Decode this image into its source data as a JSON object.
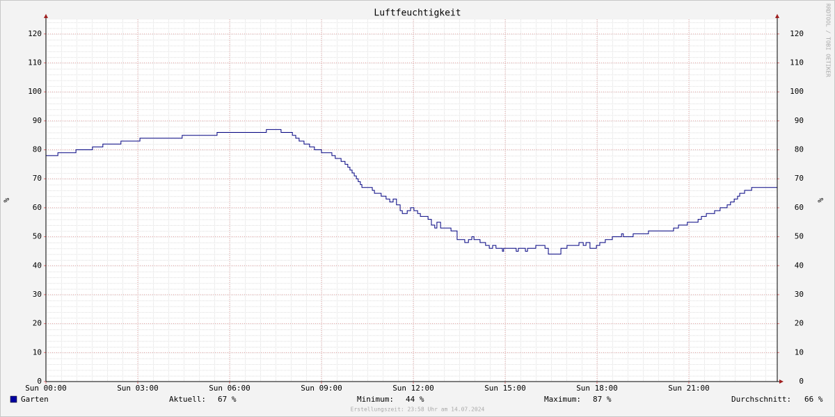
{
  "chart_data": {
    "type": "line",
    "title": "Luftfeuchtigkeit",
    "y_label": "%",
    "watermark": "RRDTOOL / TOBI OETIKER",
    "footer": "Erstellungszeit: 23:58 Uhr am 14.07.2024",
    "xlim": [
      0,
      24
    ],
    "ylim": [
      0,
      125
    ],
    "xticks": [
      {
        "value": 0,
        "label": "Sun 00:00"
      },
      {
        "value": 3,
        "label": "Sun 03:00"
      },
      {
        "value": 6,
        "label": "Sun 06:00"
      },
      {
        "value": 9,
        "label": "Sun 09:00"
      },
      {
        "value": 12,
        "label": "Sun 12:00"
      },
      {
        "value": 15,
        "label": "Sun 15:00"
      },
      {
        "value": 18,
        "label": "Sun 18:00"
      },
      {
        "value": 21,
        "label": "Sun 21:00"
      }
    ],
    "yticks": [
      0,
      10,
      20,
      30,
      40,
      50,
      60,
      70,
      80,
      90,
      100,
      110,
      120
    ],
    "grid": true,
    "series": [
      {
        "name": "Garten",
        "color": "#000080",
        "legend_color": "#0000a0",
        "x": [
          0,
          0.39,
          0.39,
          0.98,
          0.98,
          1.52,
          1.52,
          1.86,
          1.86,
          2.45,
          2.45,
          3.07,
          3.07,
          4.45,
          4.45,
          5.59,
          5.59,
          7.2,
          7.2,
          7.68,
          7.68,
          8.05,
          8.05,
          8.16,
          8.16,
          8.27,
          8.27,
          8.43,
          8.43,
          8.61,
          8.61,
          8.77,
          8.77,
          9.0,
          9.0,
          9.34,
          9.34,
          9.45,
          9.45,
          9.64,
          9.64,
          9.77,
          9.77,
          9.86,
          9.86,
          9.93,
          9.93,
          10.0,
          10.0,
          10.07,
          10.07,
          10.14,
          10.14,
          10.2,
          10.2,
          10.27,
          10.27,
          10.32,
          10.32,
          10.66,
          10.66,
          10.73,
          10.73,
          10.95,
          10.95,
          11.11,
          11.11,
          11.23,
          11.23,
          11.34,
          11.34,
          11.45,
          11.45,
          11.57,
          11.57,
          11.64,
          11.64,
          11.8,
          11.8,
          11.91,
          11.91,
          12.02,
          12.02,
          12.14,
          12.14,
          12.23,
          12.23,
          12.48,
          12.48,
          12.59,
          12.59,
          12.7,
          12.7,
          12.77,
          12.77,
          12.89,
          12.89,
          13.23,
          13.23,
          13.43,
          13.43,
          13.68,
          13.68,
          13.8,
          13.8,
          13.91,
          13.91,
          13.98,
          13.98,
          14.18,
          14.18,
          14.36,
          14.36,
          14.48,
          14.48,
          14.59,
          14.59,
          14.7,
          14.7,
          14.91,
          14.91,
          14.95,
          14.95,
          15.36,
          15.36,
          15.43,
          15.43,
          15.66,
          15.66,
          15.73,
          15.73,
          16.0,
          16.0,
          16.3,
          16.3,
          16.41,
          16.41,
          16.82,
          16.82,
          17.02,
          17.02,
          17.41,
          17.41,
          17.55,
          17.55,
          17.64,
          17.64,
          17.77,
          17.77,
          17.98,
          17.98,
          18.09,
          18.09,
          18.27,
          18.27,
          18.5,
          18.5,
          18.8,
          18.8,
          18.86,
          18.86,
          19.18,
          19.18,
          19.68,
          19.68,
          20.5,
          20.5,
          20.66,
          20.66,
          20.95,
          20.95,
          21.3,
          21.3,
          21.41,
          21.41,
          21.57,
          21.57,
          21.84,
          21.84,
          22.02,
          22.02,
          22.25,
          22.25,
          22.36,
          22.36,
          22.48,
          22.48,
          22.59,
          22.59,
          22.66,
          22.66,
          22.82,
          22.82,
          23.05,
          23.05,
          23.89
        ],
        "values": [
          78,
          78,
          79,
          79,
          80,
          80,
          81,
          81,
          82,
          82,
          83,
          83,
          84,
          84,
          85,
          85,
          86,
          86,
          87,
          87,
          86,
          86,
          85,
          85,
          84,
          84,
          83,
          83,
          82,
          82,
          81,
          81,
          80,
          80,
          79,
          79,
          78,
          78,
          77,
          77,
          76,
          76,
          75,
          75,
          74,
          74,
          73,
          73,
          72,
          72,
          71,
          71,
          70,
          70,
          69,
          69,
          68,
          68,
          67,
          67,
          66,
          66,
          65,
          65,
          64,
          64,
          63,
          63,
          62,
          62,
          63,
          63,
          61,
          61,
          59,
          59,
          58,
          58,
          59,
          59,
          60,
          60,
          59,
          59,
          58,
          58,
          57,
          57,
          56,
          56,
          54,
          54,
          53,
          53,
          55,
          55,
          53,
          53,
          52,
          52,
          49,
          49,
          48,
          48,
          49,
          49,
          50,
          50,
          49,
          49,
          48,
          48,
          47,
          47,
          46,
          46,
          47,
          47,
          46,
          46,
          45,
          45,
          46,
          46,
          45,
          45,
          46,
          46,
          45,
          45,
          46,
          46,
          47,
          47,
          46,
          46,
          44,
          44,
          46,
          46,
          47,
          47,
          48,
          48,
          47,
          47,
          48,
          48,
          46,
          46,
          47,
          47,
          48,
          48,
          49,
          49,
          50,
          50,
          51,
          51,
          50,
          50,
          51,
          51,
          52,
          52,
          53,
          53,
          54,
          54,
          55,
          55,
          56,
          56,
          57,
          57,
          58,
          58,
          59,
          59,
          60,
          60,
          61,
          61,
          62,
          62,
          63,
          63,
          64,
          64,
          65,
          65,
          66,
          66,
          67,
          67
        ]
      }
    ],
    "stats": [
      {
        "label": "Aktuell:",
        "value": 67,
        "value_label": "67 %"
      },
      {
        "label": "Minimum:",
        "value": 44,
        "value_label": "44 %"
      },
      {
        "label": "Maximum:",
        "value": 87,
        "value_label": "87 %"
      },
      {
        "label": "Durchschnitt:",
        "value": 66,
        "value_label": "66 %"
      }
    ]
  }
}
